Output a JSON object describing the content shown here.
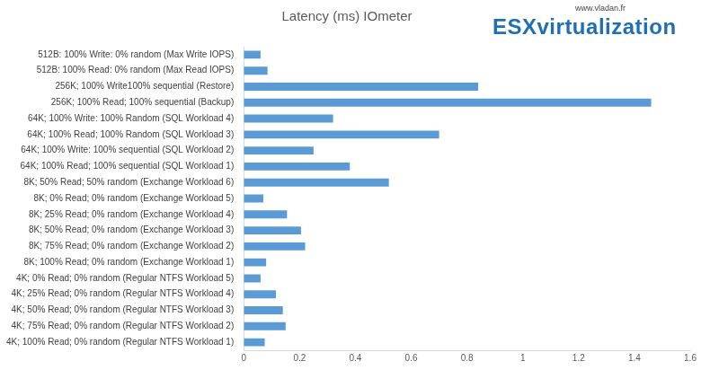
{
  "chart_data": {
    "type": "bar",
    "orientation": "horizontal",
    "title": "Latency (ms) IOmeter",
    "annotations": [
      "www.vladan.fr",
      "ESXvirtualization"
    ],
    "categories": [
      "512B: 100% Write: 0% random (Max Write IOPS)",
      "512B: 100% Read: 0% random (Max Read IOPS)",
      "256K; 100% Write100% sequential (Restore)",
      "256K; 100% Read; 100% sequential (Backup)",
      "64K; 100% Write: 100% Random (SQL Workload 4)",
      "64K; 100% Read; 100% Random (SQL Workload 3)",
      "64K; 100% Write: 100% sequential (SQL Workload 2)",
      "64K; 100% Read; 100% sequential (SQL Workload 1)",
      "8K; 50% Read; 50% random (Exchange Workload 6)",
      "8K; 0% Read; 0% random (Exchange Workload 5)",
      "8K; 25% Read; 0% random (Exchange Workload 4)",
      "8K; 50% Read; 0% random (Exchange Workload 3)",
      "8K; 75% Read; 0% random (Exchange Workload 2)",
      "8K; 100% Read; 0% random (Exchange Workload 1)",
      "4K; 0% Read; 0% random (Regular NTFS Workload 5)",
      "4K; 25% Read; 0% random (Regular NTFS Workload 4)",
      "4K; 50% Read; 0% random (Regular NTFS Workload 3)",
      "4K; 75% Read; 0% random (Regular NTFS Workload 2)",
      "4K; 100% Read; 0% random (Regular NTFS Workload 1)"
    ],
    "values": [
      0.06,
      0.085,
      0.84,
      1.46,
      0.32,
      0.7,
      0.25,
      0.38,
      0.52,
      0.07,
      0.155,
      0.205,
      0.22,
      0.08,
      0.06,
      0.115,
      0.14,
      0.15,
      0.075
    ],
    "color": "#5b9bd5",
    "xlim": [
      0,
      1.6
    ],
    "xticks": [
      0,
      0.2,
      0.4,
      0.6,
      0.8,
      1,
      1.2,
      1.4,
      1.6
    ],
    "grid": false
  }
}
